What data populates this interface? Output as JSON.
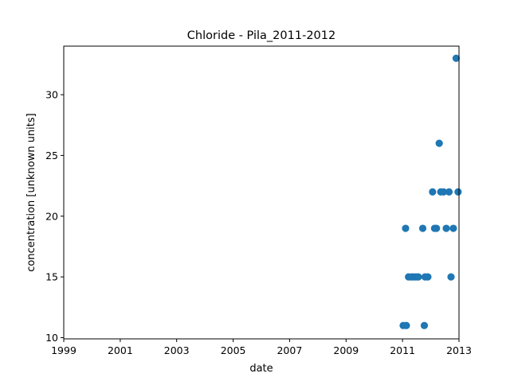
{
  "chart_data": {
    "type": "scatter",
    "title": "Chloride - Pila_2011-2012",
    "xlabel": "date",
    "ylabel": "concentration [unknown units]",
    "xlim": [
      "1999-01-01",
      "2013-01-01"
    ],
    "ylim": [
      9.9,
      34
    ],
    "x_ticks": [
      "1999",
      "2001",
      "2003",
      "2005",
      "2007",
      "2009",
      "2011",
      "2013"
    ],
    "y_ticks": [
      10,
      15,
      20,
      25,
      30
    ],
    "grid": false,
    "point_color": "#1f77b4",
    "series": [
      {
        "points": [
          {
            "x": "2011-01-10",
            "y": 11
          },
          {
            "x": "2011-02-20",
            "y": 11
          },
          {
            "x": "2011-02-10",
            "y": 19
          },
          {
            "x": "2011-03-20",
            "y": 15
          },
          {
            "x": "2011-04-25",
            "y": 15
          },
          {
            "x": "2011-05-25",
            "y": 15
          },
          {
            "x": "2011-06-25",
            "y": 15
          },
          {
            "x": "2011-07-25",
            "y": 15
          },
          {
            "x": "2011-09-20",
            "y": 19
          },
          {
            "x": "2011-10-10",
            "y": 11
          },
          {
            "x": "2011-10-20",
            "y": 15
          },
          {
            "x": "2011-11-25",
            "y": 15
          },
          {
            "x": "2012-01-25",
            "y": 22
          },
          {
            "x": "2012-02-20",
            "y": 19
          },
          {
            "x": "2012-03-15",
            "y": 19
          },
          {
            "x": "2012-04-20",
            "y": 26
          },
          {
            "x": "2012-05-10",
            "y": 22
          },
          {
            "x": "2012-06-15",
            "y": 22
          },
          {
            "x": "2012-07-20",
            "y": 19
          },
          {
            "x": "2012-08-25",
            "y": 22
          },
          {
            "x": "2012-09-20",
            "y": 15
          },
          {
            "x": "2012-10-20",
            "y": 19
          },
          {
            "x": "2012-11-25",
            "y": 33
          },
          {
            "x": "2012-12-20",
            "y": 22
          }
        ]
      }
    ]
  }
}
